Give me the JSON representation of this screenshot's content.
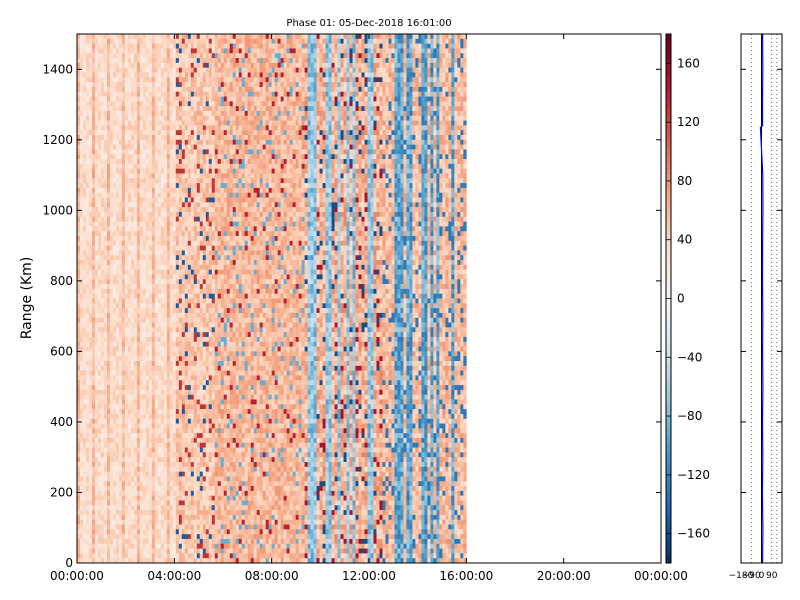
{
  "chart_data": [
    {
      "type": "heatmap",
      "title": "Phase 01: 05-Dec-2018 16:01:00",
      "xlabel": "",
      "ylabel": "Range (Km)",
      "x_ticks": [
        "00:00:00",
        "04:00:00",
        "08:00:00",
        "12:00:00",
        "16:00:00",
        "20:00:00",
        "00:00:00"
      ],
      "xlim": [
        "00:00:00",
        "24:00:00"
      ],
      "y_ticks": [
        0,
        200,
        400,
        600,
        800,
        1000,
        1200,
        1400
      ],
      "ylim": [
        0,
        1500
      ],
      "data_coverage": [
        "00:00:00",
        "16:00:00"
      ],
      "colormap": "RdBu_r",
      "grid": false,
      "colorbar": {
        "range": [
          -180,
          180
        ],
        "ticks": [
          160,
          120,
          80,
          40,
          0,
          -40,
          -80,
          -120,
          -160
        ],
        "tick_labels": [
          "160",
          "120",
          "80",
          "40",
          "0",
          "−40",
          "−80",
          "−120",
          "−160"
        ],
        "colors": [
          "#053061",
          "#2166ac",
          "#4393c3",
          "#92c5de",
          "#d1e5f0",
          "#f7f7f7",
          "#fddbc7",
          "#f4a582",
          "#d6604d",
          "#b2182b",
          "#67001f"
        ]
      }
    },
    {
      "type": "line",
      "xlabel": "",
      "ylabel": "",
      "x_ticks": [
        -180,
        -90,
        0,
        90
      ],
      "x_tick_labels": [
        "−180",
        "−90",
        "0",
        "90"
      ],
      "xlim": [
        -180,
        180
      ],
      "ylim": [
        0,
        1500
      ],
      "y_ticks": [
        0,
        200,
        400,
        600,
        800,
        1000,
        1200,
        1400
      ],
      "grid": "vertical-dotted",
      "reference_line_x": 0,
      "series_color": "#0000ff",
      "series": [
        {
          "points": [
            [
              10,
              0
            ],
            [
              12,
              100
            ],
            [
              8,
              200
            ],
            [
              11,
              300
            ],
            [
              9,
              400
            ],
            [
              12,
              500
            ],
            [
              10,
              600
            ],
            [
              11,
              700
            ],
            [
              9,
              800
            ],
            [
              10,
              900
            ],
            [
              12,
              1000
            ],
            [
              11,
              1100
            ],
            [
              -10,
              1235
            ],
            [
              10,
              1240
            ],
            [
              9,
              1300
            ],
            [
              11,
              1400
            ],
            [
              10,
              1500
            ]
          ]
        }
      ]
    }
  ]
}
